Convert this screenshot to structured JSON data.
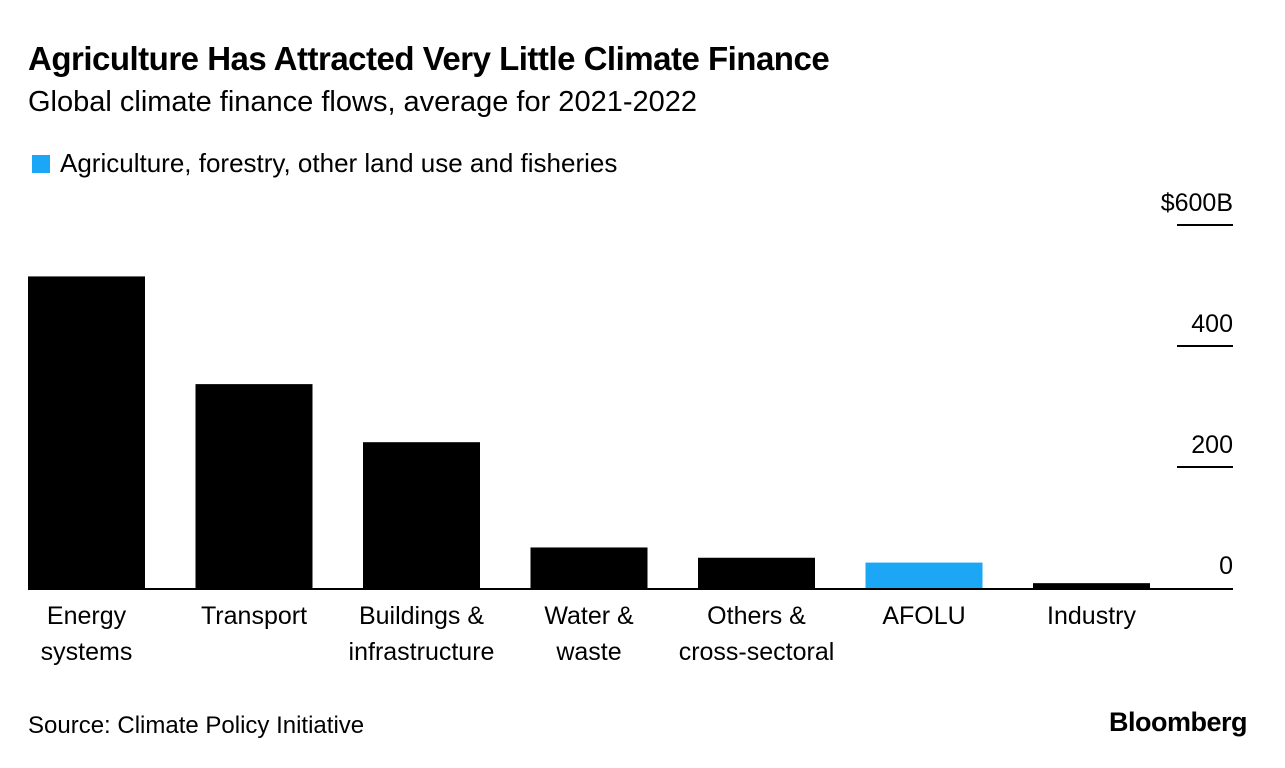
{
  "header": {
    "title": "Agriculture Has Attracted Very Little Climate Finance",
    "subtitle": "Global climate finance flows, average for 2021-2022"
  },
  "legend": {
    "label": "Agriculture, forestry, other land use and fisheries",
    "color": "#1BA7F5"
  },
  "footer": {
    "source": "Source: Climate Policy Initiative",
    "brand": "Bloomberg"
  },
  "chart_data": {
    "type": "bar",
    "title": "Agriculture Has Attracted Very Little Climate Finance",
    "subtitle": "Global climate finance flows, average for 2021-2022",
    "categories": [
      [
        "Energy",
        "systems"
      ],
      [
        "Transport"
      ],
      [
        "Buildings &",
        "infrastructure"
      ],
      [
        "Water &",
        "waste"
      ],
      [
        "Others &",
        "cross-sectoral"
      ],
      [
        "AFOLU"
      ],
      [
        "Industry"
      ]
    ],
    "values": [
      515,
      337,
      241,
      67,
      50,
      42,
      8
    ],
    "highlight_index": 5,
    "bar_color": "#000000",
    "highlight_color": "#1BA7F5",
    "ylim": [
      0,
      600
    ],
    "yticks": [
      0,
      200,
      400,
      600
    ],
    "ytick_labels": [
      "0",
      "200",
      "400",
      "$600B"
    ],
    "yaxis_position": "right",
    "grid": false,
    "legend_position": "top-left",
    "xlabel": "",
    "ylabel": ""
  }
}
